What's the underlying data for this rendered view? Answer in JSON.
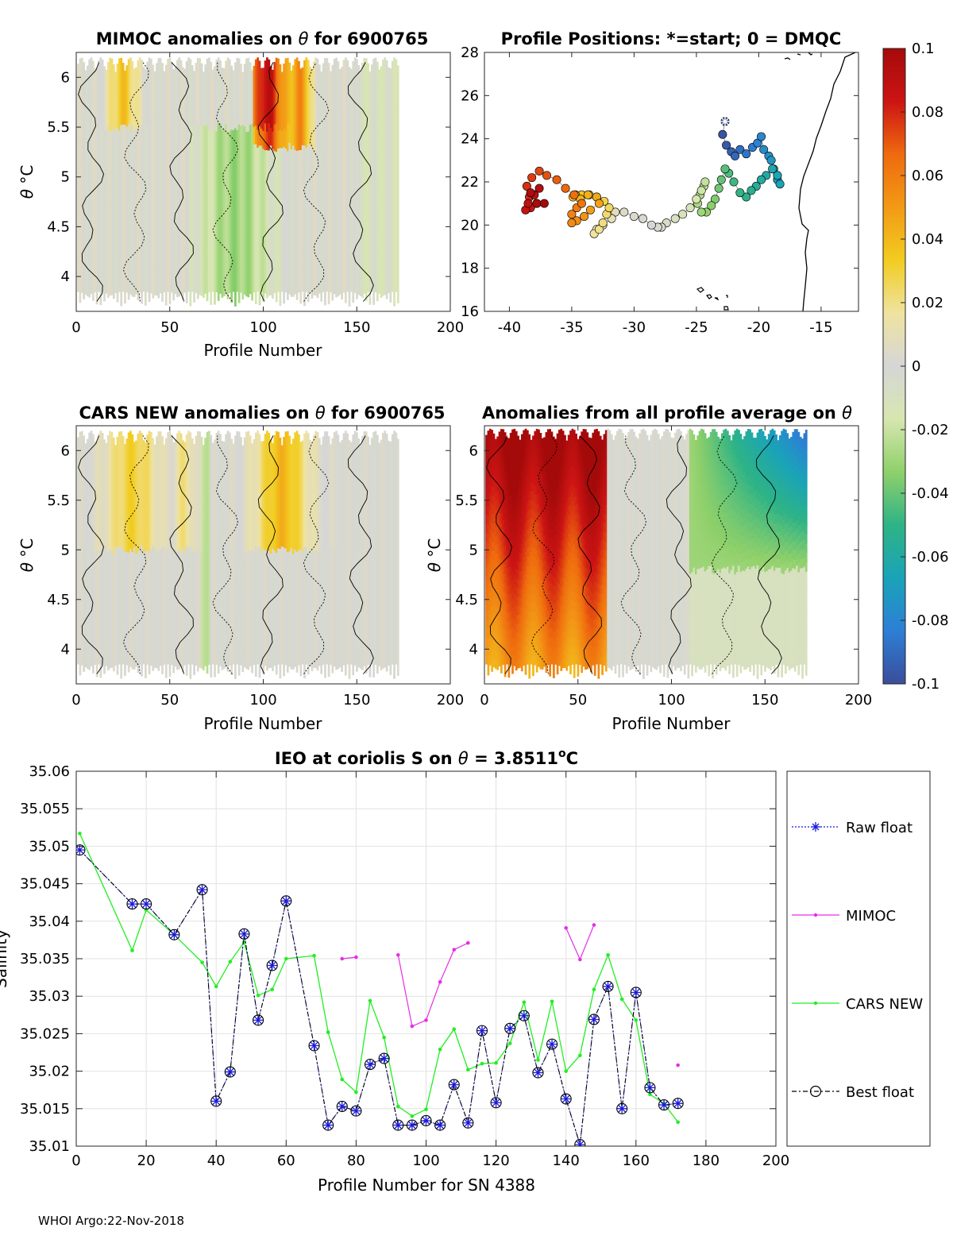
{
  "footer": "WHOI Argo:22-Nov-2018",
  "colors": {
    "raw": "#1a1adc",
    "mimoc": "#e62ee6",
    "cars": "#22ee22",
    "best": "#000000",
    "grid": "#e2e2e2",
    "contour": "#000000",
    "neutral": "#d6d6d6"
  },
  "colormap": [
    "#3a4d9a",
    "#2d7fd6",
    "#1aa3b8",
    "#2eb386",
    "#8fd06a",
    "#d7e6b0",
    "#d6d6d6",
    "#efe3a0",
    "#f2cc20",
    "#f29a16",
    "#ef6a0e",
    "#cc1414",
    "#a50a0a"
  ],
  "colorbar": {
    "min": -0.1,
    "max": 0.1,
    "tick_labels": [
      "0.1",
      "0.08",
      "0.06",
      "0.04",
      "0.02",
      "0",
      "-0.02",
      "-0.04",
      "-0.06",
      "-0.08",
      "-0.1"
    ]
  },
  "chart_data": [
    {
      "id": "mimoc",
      "type": "heatmap",
      "title_prefix": "MIMOC anomalies on ",
      "title_symbol": "θ",
      "title_suffix": "  for 6900765",
      "xlabel": "Profile Number",
      "ylabel_symbol": "θ",
      "ylabel_unit": "°C",
      "xlim": [
        0,
        200
      ],
      "ylim": [
        3.65,
        6.25
      ],
      "xticks": [
        "0",
        "50",
        "100",
        "150",
        "200"
      ],
      "yticks": [
        "6",
        "5.5",
        "5",
        "4.5",
        "4"
      ],
      "profiles_range": [
        1,
        172
      ],
      "pattern": "mostly near-zero (grey) with positive anomalies up to +0.1 near profiles 95-125 above 5.5°C and negative anomalies near -0.04 around profiles 70-110 below 5.2°C"
    },
    {
      "id": "positions",
      "type": "scatter",
      "title": "Profile Positions: *=start; 0 = DMQC",
      "xlim": [
        -42,
        -12
      ],
      "ylim": [
        16,
        28
      ],
      "xticks": [
        "-40",
        "-35",
        "-30",
        "-25",
        "-20",
        "-15"
      ],
      "yticks": [
        "28",
        "26",
        "24",
        "22",
        "20",
        "18",
        "16"
      ],
      "start_marker": "*",
      "track_lon": [
        -22.7,
        -22.9,
        -22.6,
        -22.2,
        -21.9,
        -21.5,
        -21.0,
        -20.5,
        -20.1,
        -19.8,
        -19.6,
        -19.2,
        -19.0,
        -18.8,
        -18.5,
        -18.3,
        -18.5,
        -18.9,
        -19.4,
        -19.8,
        -20.2,
        -20.6,
        -21.0,
        -21.5,
        -22.0,
        -22.4,
        -22.7,
        -23.0,
        -23.2,
        -23.5,
        -23.8,
        -24.2,
        -24.6,
        -24.9,
        -24.7,
        -24.4,
        -24.3,
        -24.6,
        -25.0,
        -25.5,
        -26.1,
        -26.7,
        -27.4,
        -27.8,
        -28.1,
        -28.6,
        -29.3,
        -30.0,
        -30.8,
        -31.5,
        -31.8,
        -32.5,
        -33.0,
        -33.2,
        -32.8,
        -32.5,
        -32.2,
        -32.0,
        -32.4,
        -33.0,
        -33.6,
        -34.2,
        -34.7,
        -34.9,
        -34.3,
        -33.7,
        -33.0,
        -32.8,
        -33.5,
        -34.0,
        -34.6,
        -35.0,
        -35.0,
        -34.6,
        -34.2,
        -34.8,
        -35.5,
        -36.2,
        -37.0,
        -37.6,
        -38.2,
        -38.6,
        -38.4,
        -37.8,
        -38.3,
        -38.7,
        -38.5,
        -38.0,
        -37.6,
        -38.3,
        -37.8,
        -37.2
      ],
      "track_lat": [
        24.8,
        24.2,
        23.7,
        23.4,
        23.2,
        23.5,
        23.3,
        23.6,
        23.8,
        24.1,
        23.5,
        23.2,
        23.0,
        22.6,
        22.1,
        21.9,
        22.3,
        22.6,
        22.3,
        22.1,
        21.8,
        21.6,
        21.3,
        21.5,
        22.0,
        22.4,
        22.6,
        22.1,
        21.7,
        21.2,
        20.9,
        20.6,
        20.6,
        21.0,
        21.4,
        21.8,
        22.0,
        21.6,
        21.2,
        20.8,
        20.5,
        20.3,
        20.1,
        19.9,
        19.9,
        20.0,
        20.3,
        20.4,
        20.6,
        20.6,
        20.3,
        20.0,
        19.8,
        19.6,
        19.8,
        20.1,
        20.5,
        20.8,
        21.1,
        21.3,
        21.4,
        21.4,
        21.4,
        21.3,
        21.2,
        21.4,
        21.3,
        21.0,
        20.7,
        20.4,
        20.2,
        20.1,
        20.5,
        20.8,
        21.0,
        21.4,
        21.7,
        22.1,
        22.3,
        22.5,
        22.2,
        21.8,
        21.3,
        21.0,
        20.8,
        20.7,
        21.0,
        21.4,
        21.7,
        21.5,
        21.0,
        21.0
      ]
    },
    {
      "id": "cars",
      "type": "heatmap",
      "title_prefix": "CARS NEW anomalies on ",
      "title_symbol": "θ",
      "title_suffix": " for 6900765",
      "xlabel": "Profile Number",
      "ylabel_symbol": "θ",
      "ylabel_unit": "°C",
      "xlim": [
        0,
        200
      ],
      "ylim": [
        3.65,
        6.25
      ],
      "xticks": [
        "0",
        "50",
        "100",
        "150",
        "200"
      ],
      "yticks": [
        "6",
        "5.5",
        "5",
        "4.5",
        "4"
      ],
      "profiles_range": [
        1,
        172
      ],
      "pattern": "weak positive anomalies (yellow, ~+0.02 to +0.04) above 5°C at profiles 20-60 and 95-125, near zero elsewhere"
    },
    {
      "id": "allavg",
      "type": "heatmap",
      "title_prefix": "Anomalies from all profile average on ",
      "title_symbol": "θ",
      "title_suffix": "",
      "xlabel": "Profile Number",
      "ylabel_symbol": "θ",
      "ylabel_unit": "°C",
      "xlim": [
        0,
        200
      ],
      "ylim": [
        3.65,
        6.25
      ],
      "xticks": [
        "0",
        "50",
        "100",
        "150",
        "200"
      ],
      "yticks": [
        "6",
        "5.5",
        "5",
        "4.5",
        "4"
      ],
      "profiles_range": [
        1,
        172
      ],
      "pattern": "strong positive anomalies (+0.06 to +0.1) for profiles 1-65, near zero for 65-110, negative anomalies (-0.04 to -0.08) for profiles 110-172 above 5°C"
    },
    {
      "id": "salinity",
      "type": "line",
      "title_prefix": "IEO at coriolis S on ",
      "title_symbol": "θ",
      "title_value": " = 3.8511",
      "title_unit_sup": "o",
      "title_unit": "C",
      "xlabel": "Profile Number for SN 4388",
      "ylabel": "Salinity",
      "xlim": [
        0,
        200
      ],
      "ylim": [
        35.01,
        35.06
      ],
      "xticks": [
        "0",
        "20",
        "40",
        "60",
        "80",
        "100",
        "120",
        "140",
        "160",
        "180",
        "200"
      ],
      "yticks": [
        "35.06",
        "35.055",
        "35.05",
        "35.045",
        "35.04",
        "35.035",
        "35.03",
        "35.025",
        "35.02",
        "35.015",
        "35.01"
      ],
      "grid": true,
      "legend_position": "right-outside",
      "legend": [
        "Raw float",
        "MIMOC",
        "CARS NEW",
        "Best float"
      ],
      "series": [
        {
          "name": "Raw float",
          "x": [
            1,
            16,
            20,
            28,
            36,
            40,
            44,
            48,
            52,
            56,
            60,
            68,
            72,
            76,
            80,
            84,
            88,
            92,
            96,
            100,
            104,
            108,
            112,
            116,
            120,
            124,
            128,
            132,
            136,
            140,
            144,
            148,
            152,
            156,
            160,
            164,
            168,
            172
          ],
          "y": [
            35.0495,
            35.0423,
            35.0423,
            35.0382,
            35.0442,
            35.016,
            35.0199,
            35.0383,
            35.0268,
            35.0341,
            35.0427,
            35.0234,
            35.0128,
            35.0153,
            35.0147,
            35.0209,
            35.0217,
            35.0128,
            35.0128,
            35.0134,
            35.0128,
            35.0182,
            35.0131,
            35.0254,
            35.0158,
            35.0257,
            35.0274,
            35.0198,
            35.0236,
            35.0163,
            35.0102,
            35.0269,
            35.0313,
            35.015,
            35.0305,
            35.0178,
            35.0155,
            35.0157
          ]
        },
        {
          "name": "MIMOC",
          "segments": [
            {
              "x": [
                76,
                80
              ],
              "y": [
                35.035,
                35.0352
              ]
            },
            {
              "x": [
                92,
                96,
                100,
                104,
                108,
                112
              ],
              "y": [
                35.0355,
                35.026,
                35.0268,
                35.0319,
                35.0362,
                35.0371
              ]
            },
            {
              "x": [
                140,
                144,
                148
              ],
              "y": [
                35.0391,
                35.0349,
                35.0395
              ]
            },
            {
              "x": [
                172
              ],
              "y": [
                35.0208
              ]
            }
          ]
        },
        {
          "name": "CARS NEW",
          "x": [
            1,
            16,
            20,
            28,
            36,
            40,
            44,
            48,
            52,
            56,
            60,
            68,
            72,
            76,
            80,
            84,
            88,
            92,
            96,
            100,
            104,
            108,
            112,
            116,
            120,
            124,
            128,
            132,
            136,
            140,
            144,
            148,
            152,
            156,
            160,
            164,
            168,
            172
          ],
          "y": [
            35.0517,
            35.0361,
            35.0415,
            35.0382,
            35.0345,
            35.0313,
            35.0346,
            35.0372,
            35.0301,
            35.0309,
            35.035,
            35.0354,
            35.0252,
            35.0189,
            35.0172,
            35.0294,
            35.0245,
            35.0153,
            35.014,
            35.0149,
            35.0229,
            35.0256,
            35.0202,
            35.021,
            35.0211,
            35.0237,
            35.0292,
            35.0215,
            35.0293,
            35.02,
            35.0221,
            35.0309,
            35.0355,
            35.0296,
            35.0268,
            35.0169,
            35.0157,
            35.0132
          ]
        },
        {
          "name": "Best float",
          "x": [
            1,
            16,
            20,
            28,
            36,
            40,
            44,
            48,
            52,
            56,
            60,
            68,
            72,
            76,
            80,
            84,
            88,
            92,
            96,
            100,
            104,
            108,
            112,
            116,
            120,
            124,
            128,
            132,
            136,
            140,
            144,
            148,
            152,
            156,
            160,
            164,
            168,
            172
          ],
          "y": [
            35.0495,
            35.0423,
            35.0423,
            35.0382,
            35.0442,
            35.016,
            35.0199,
            35.0383,
            35.0268,
            35.0341,
            35.0427,
            35.0234,
            35.0128,
            35.0153,
            35.0147,
            35.0209,
            35.0217,
            35.0128,
            35.0128,
            35.0134,
            35.0128,
            35.0182,
            35.0131,
            35.0254,
            35.0158,
            35.0257,
            35.0274,
            35.0198,
            35.0236,
            35.0163,
            35.0102,
            35.0269,
            35.0313,
            35.015,
            35.0305,
            35.0178,
            35.0155,
            35.0157
          ]
        }
      ]
    }
  ]
}
